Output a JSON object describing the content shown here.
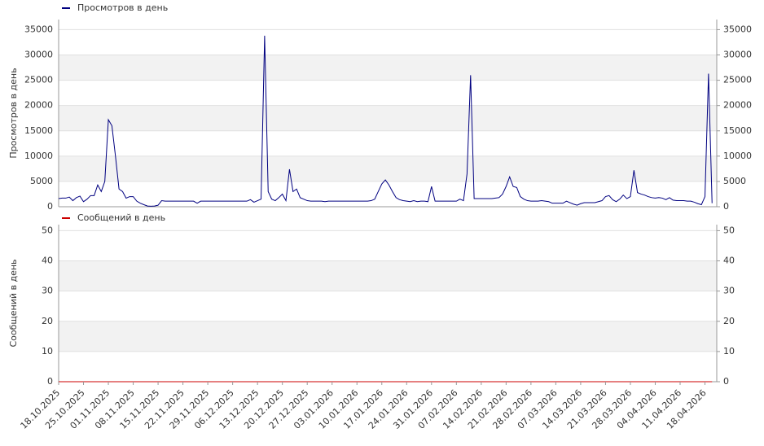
{
  "chart_data": [
    {
      "type": "line",
      "y_label": "Просмотров в день",
      "series": [
        {
          "name": "Просмотров в день",
          "color": "#000080",
          "values": [
            1600,
            1700,
            1700,
            1900,
            1200,
            1800,
            2100,
            1000,
            1500,
            2200,
            2200,
            4300,
            3000,
            5000,
            17200,
            16000,
            10000,
            3500,
            3000,
            1700,
            2000,
            2000,
            1100,
            700,
            400,
            150,
            100,
            150,
            300,
            1200,
            1100,
            1100,
            1100,
            1100,
            1100,
            1100,
            1100,
            1100,
            1100,
            700,
            1100,
            1100,
            1100,
            1100,
            1100,
            1100,
            1100,
            1100,
            1100,
            1100,
            1100,
            1100,
            1100,
            1100,
            1400,
            900,
            1200,
            1500,
            33800,
            3000,
            1500,
            1200,
            1800,
            2500,
            1200,
            7400,
            3000,
            3500,
            1800,
            1500,
            1200,
            1100,
            1100,
            1100,
            1100,
            1000,
            1100,
            1100,
            1100,
            1100,
            1100,
            1100,
            1100,
            1100,
            1100,
            1100,
            1100,
            1100,
            1200,
            1500,
            3000,
            4500,
            5300,
            4300,
            3000,
            1800,
            1400,
            1200,
            1100,
            1000,
            1200,
            1000,
            1100,
            1100,
            1000,
            4000,
            1100,
            1100,
            1100,
            1100,
            1100,
            1100,
            1100,
            1500,
            1200,
            6500,
            26000,
            1600,
            1600,
            1600,
            1600,
            1600,
            1600,
            1700,
            1800,
            2500,
            4000,
            5900,
            4000,
            3800,
            2000,
            1500,
            1200,
            1100,
            1100,
            1100,
            1200,
            1100,
            1000,
            700,
            700,
            700,
            700,
            1100,
            800,
            500,
            300,
            600,
            800,
            800,
            800,
            800,
            1000,
            1200,
            2000,
            2200,
            1400,
            1000,
            1500,
            2300,
            1600,
            2000,
            7200,
            2800,
            2500,
            2300,
            2000,
            1800,
            1700,
            1800,
            1700,
            1400,
            1800,
            1300,
            1200,
            1200,
            1200,
            1100,
            1100,
            900,
            600,
            400,
            2000,
            26300,
            700
          ]
        }
      ],
      "ylim": [
        0,
        37000
      ],
      "yticks": [
        0,
        5000,
        10000,
        15000,
        20000,
        25000,
        30000,
        35000
      ]
    },
    {
      "type": "line",
      "y_label": "Сообщений в день",
      "categories": [
        "18.10.2025",
        null,
        null,
        null,
        null,
        null,
        null,
        "25.10.2025",
        null,
        null,
        null,
        null,
        null,
        null,
        "01.11.2025",
        null,
        null,
        null,
        null,
        null,
        null,
        "08.11.2025",
        null,
        null,
        null,
        null,
        null,
        null,
        "15.11.2025",
        null,
        null,
        null,
        null,
        null,
        null,
        "22.11.2025",
        null,
        null,
        null,
        null,
        null,
        null,
        "29.11.2025",
        null,
        null,
        null,
        null,
        null,
        null,
        "06.12.2025",
        null,
        null,
        null,
        null,
        null,
        null,
        "13.12.2025",
        null,
        null,
        null,
        null,
        null,
        null,
        "20.12.2025",
        null,
        null,
        null,
        null,
        null,
        null,
        "27.12.2025",
        null,
        null,
        null,
        null,
        null,
        null,
        "03.01.2026",
        null,
        null,
        null,
        null,
        null,
        null,
        "10.01.2026",
        null,
        null,
        null,
        null,
        null,
        null,
        "17.01.2026",
        null,
        null,
        null,
        null,
        null,
        null,
        "24.01.2026",
        null,
        null,
        null,
        null,
        null,
        null,
        "31.01.2026",
        null,
        null,
        null,
        null,
        null,
        null,
        "07.02.2026",
        null,
        null,
        null,
        null,
        null,
        null,
        "14.02.2026",
        null,
        null,
        null,
        null,
        null,
        null,
        "21.02.2026",
        null,
        null,
        null,
        null,
        null,
        null,
        "28.02.2026",
        null,
        null,
        null,
        null,
        null,
        null,
        "07.03.2026",
        null,
        null,
        null,
        null,
        null,
        null,
        "14.03.2026",
        null,
        null,
        null,
        null,
        null,
        null,
        "21.03.2026",
        null,
        null,
        null,
        null,
        null,
        null,
        "28.03.2026",
        null,
        null,
        null,
        null,
        null,
        null,
        "04.04.2026",
        null,
        null,
        null,
        null,
        null,
        null,
        "11.04.2026",
        null,
        null,
        null,
        null,
        null,
        null,
        "18.04.2026",
        null,
        null
      ],
      "series": [
        {
          "name": "Сообщений в день",
          "color": "#cc0000",
          "values": [
            0,
            0,
            0,
            0,
            0,
            0,
            0,
            0,
            0,
            0,
            0,
            0,
            0,
            0,
            0,
            0,
            0,
            0,
            0,
            0,
            0,
            0,
            0,
            0,
            0,
            0,
            0,
            0,
            0,
            0,
            0,
            0,
            0,
            0,
            0,
            0,
            0,
            0,
            0,
            0,
            0,
            0,
            0,
            0,
            0,
            0,
            0,
            0,
            0,
            0,
            0,
            0,
            0,
            0,
            0,
            0,
            0,
            0,
            0,
            0,
            0,
            0,
            0,
            0,
            0,
            0,
            0,
            0,
            0,
            0,
            0,
            0,
            0,
            0,
            0,
            0,
            0,
            0,
            0,
            0,
            0,
            0,
            0,
            0,
            0,
            0,
            0,
            0,
            0,
            0,
            0,
            0,
            0,
            0,
            0,
            0,
            0,
            0,
            0,
            0,
            0,
            0,
            0,
            0,
            0,
            0,
            0,
            0,
            0,
            0,
            0,
            0,
            0,
            0,
            0,
            0,
            0,
            0,
            0,
            0,
            0,
            0,
            0,
            0,
            0,
            0,
            0,
            0,
            0,
            0,
            0,
            0,
            0,
            0,
            0,
            0,
            0,
            0,
            0,
            0,
            0,
            0,
            0,
            0,
            0,
            0,
            0,
            0,
            0,
            0,
            0,
            0,
            0,
            0,
            0,
            0,
            0,
            0,
            0,
            0,
            0,
            0,
            0,
            0,
            0,
            0,
            0,
            0,
            0,
            0,
            0,
            0,
            0,
            0,
            0,
            0,
            0,
            0,
            0,
            0,
            0,
            0,
            0,
            0,
            0
          ]
        }
      ],
      "ylim": [
        0,
        52
      ],
      "yticks": [
        0,
        10,
        20,
        30,
        40,
        50
      ]
    }
  ]
}
